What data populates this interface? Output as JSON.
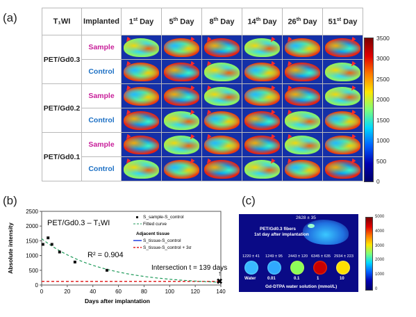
{
  "panel_a": {
    "label": "(a)",
    "header": {
      "t1": "T₁WI",
      "implanted": "Implanted",
      "days": [
        {
          "n": "1",
          "sup": "st",
          "d": " Day"
        },
        {
          "n": "5",
          "sup": "th",
          "d": " Day"
        },
        {
          "n": "8",
          "sup": "th",
          "d": " Day"
        },
        {
          "n": "14",
          "sup": "th",
          "d": " Day"
        },
        {
          "n": "26",
          "sup": "th",
          "d": " Day"
        },
        {
          "n": "51",
          "sup": "st",
          "d": " Day"
        }
      ]
    },
    "groups": [
      "PET/Gd0.3",
      "PET/Gd0.2",
      "PET/Gd0.1"
    ],
    "rows": [
      "Sample",
      "Control"
    ],
    "colorbar": {
      "ticks": [
        "3500",
        "3000",
        "2500",
        "2000",
        "1500",
        "1000",
        "500",
        "0"
      ]
    }
  },
  "panel_b": {
    "label": "(b)",
    "chart_data": {
      "type": "scatter",
      "title": "PET/Gd0.3 – T₁WI",
      "xlabel": "Days after implantation",
      "ylabel": "Absolute intensity",
      "xlim": [
        0,
        140
      ],
      "ylim": [
        0,
        2500
      ],
      "x_ticks": [
        "0",
        "20",
        "40",
        "60",
        "80",
        "100",
        "120",
        "140"
      ],
      "y_ticks": [
        "0",
        "500",
        "1000",
        "1500",
        "2000",
        "2500"
      ],
      "points": [
        [
          1,
          1380
        ],
        [
          5,
          1600
        ],
        [
          8,
          1380
        ],
        [
          14,
          1120
        ],
        [
          26,
          780
        ],
        [
          51,
          500
        ]
      ],
      "threshold": 125,
      "r2": "R² = 0.904",
      "intersection": "Intersection t = 139 days",
      "legend": {
        "points": "S_sample-S_control",
        "fit": "Fitted curve",
        "adj": "Adjacent tissue",
        "blue": "S_tissue-S_control",
        "red": "S_tissue-S_control + 3σ"
      }
    }
  },
  "panel_c": {
    "label": "(c)",
    "top_value": "2628 ± 35",
    "fiber_label1": "PET/Gd0.3 fibers",
    "fiber_label2": "1st day after implantation",
    "vials": [
      {
        "value": "1220 ± 41",
        "name": "Water"
      },
      {
        "value": "1249 ± 95",
        "name": "0.01"
      },
      {
        "value": "2443 ± 120",
        "name": "0.1"
      },
      {
        "value": "6345 ± 635",
        "name": "1"
      },
      {
        "value": "2934 ± 223",
        "name": "10"
      }
    ],
    "xlabel": "Gd-DTPA water solution (mmol/L)",
    "colorbar": {
      "ticks": [
        "5000",
        "4000",
        "3000",
        "2000",
        "1000",
        "0"
      ]
    }
  }
}
